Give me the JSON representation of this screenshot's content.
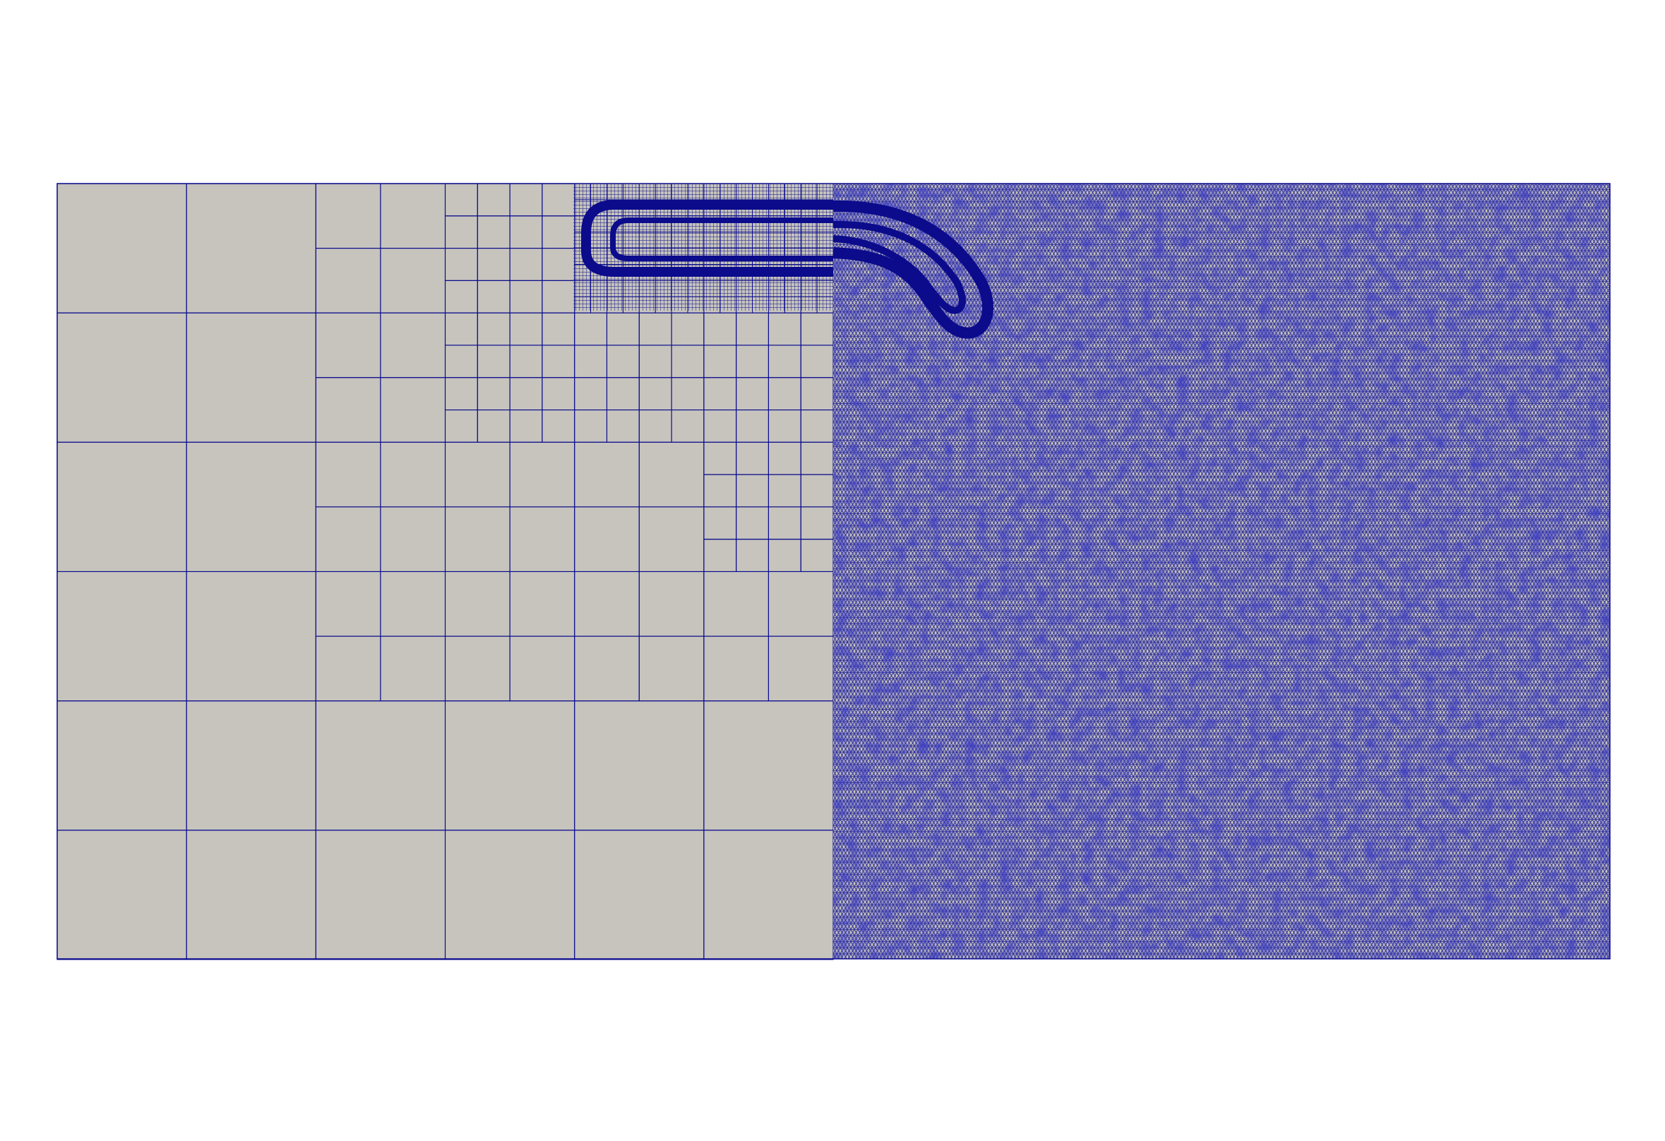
{
  "viewer": {
    "background_color": "#ffffff",
    "mesh_fill_color": "#c6c4bd",
    "mesh_edge_color": "#0b0b8c"
  },
  "mesh": {
    "left_half": {
      "type": "quadtree-quadrilateral",
      "refined_feature": "rounded-slot"
    },
    "right_half": {
      "type": "unstructured-triangular",
      "refined_feature": "curved-hook"
    }
  }
}
